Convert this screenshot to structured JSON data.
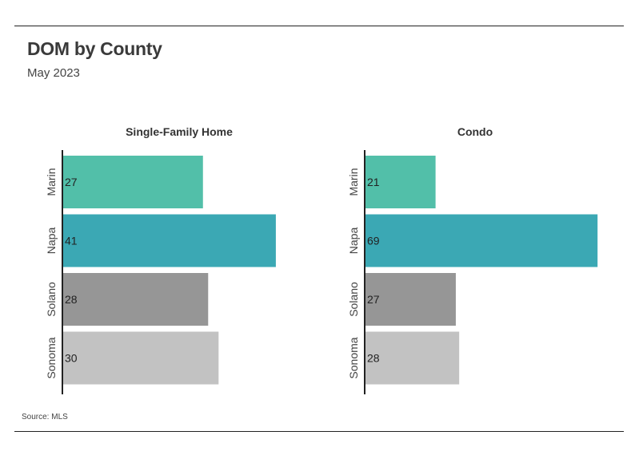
{
  "title": "DOM by County",
  "subtitle": "May 2023",
  "source": "Source: MLS",
  "colors": {
    "Marin": "#52bfa9",
    "Napa": "#3ba8b4",
    "Solano": "#969696",
    "Sonoma": "#c2c2c2",
    "axis": "#222222"
  },
  "chart_data": [
    {
      "type": "bar",
      "orientation": "horizontal",
      "title": "Single-Family Home",
      "categories": [
        "Marin",
        "Napa",
        "Solano",
        "Sonoma"
      ],
      "values": [
        27,
        41,
        28,
        30
      ]
    },
    {
      "type": "bar",
      "orientation": "horizontal",
      "title": "Condo",
      "categories": [
        "Marin",
        "Napa",
        "Solano",
        "Sonoma"
      ],
      "values": [
        21,
        69,
        27,
        28
      ]
    }
  ]
}
